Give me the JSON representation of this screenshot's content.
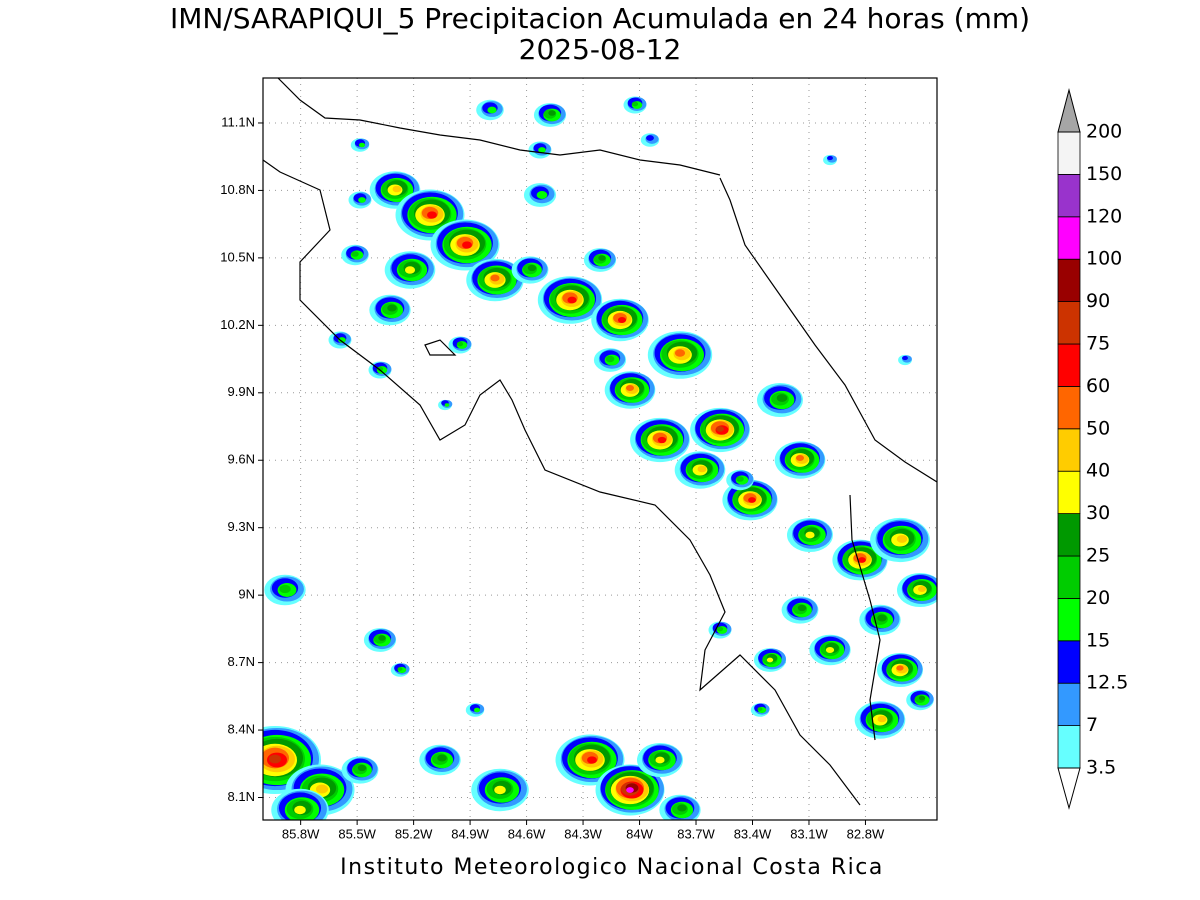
{
  "title": "IMN/SARAPIQUI_5 Precipitacion Acumulada en 24 horas (mm)",
  "subtitle": "2025-08-12",
  "map": {
    "xlim": [
      -86.0,
      -82.42
    ],
    "ylim": [
      8.0,
      11.3
    ],
    "xticks": [
      {
        "value": -85.8,
        "label": "85.8W"
      },
      {
        "value": -85.5,
        "label": "85.5W"
      },
      {
        "value": -85.2,
        "label": "85.2W"
      },
      {
        "value": -84.9,
        "label": "84.9W"
      },
      {
        "value": -84.6,
        "label": "84.6W"
      },
      {
        "value": -84.3,
        "label": "84.3W"
      },
      {
        "value": -84.0,
        "label": "84W"
      },
      {
        "value": -83.7,
        "label": "83.7W"
      },
      {
        "value": -83.4,
        "label": "83.4W"
      },
      {
        "value": -83.1,
        "label": "83.1W"
      },
      {
        "value": -82.8,
        "label": "82.8W"
      }
    ],
    "yticks": [
      {
        "value": 8.1,
        "label": "8.1N"
      },
      {
        "value": 8.4,
        "label": "8.4N"
      },
      {
        "value": 8.7,
        "label": "8.7N"
      },
      {
        "value": 9.0,
        "label": "9N"
      },
      {
        "value": 9.3,
        "label": "9.3N"
      },
      {
        "value": 9.6,
        "label": "9.6N"
      },
      {
        "value": 9.9,
        "label": "9.9N"
      },
      {
        "value": 10.2,
        "label": "10.2N"
      },
      {
        "value": 10.5,
        "label": "10.5N"
      },
      {
        "value": 10.8,
        "label": "10.8N"
      },
      {
        "value": 11.1,
        "label": "11.1N"
      }
    ],
    "grid": true
  },
  "colorbar": {
    "levels": [
      3.5,
      7,
      12.5,
      15,
      20,
      25,
      30,
      40,
      50,
      60,
      75,
      90,
      100,
      120,
      150,
      200
    ],
    "colors": [
      "#66ffff",
      "#3399ff",
      "#0000ff",
      "#00ff00",
      "#00cc00",
      "#009900",
      "#ffff00",
      "#ffcc00",
      "#ff6600",
      "#ff0000",
      "#cc3300",
      "#990000",
      "#ff00ff",
      "#9933cc",
      "#f4f4f4"
    ],
    "under_color": "#ffffff",
    "over_color": "#a6a6a6"
  },
  "footer": "Instituto Meteorologico Nacional Costa Rica"
}
